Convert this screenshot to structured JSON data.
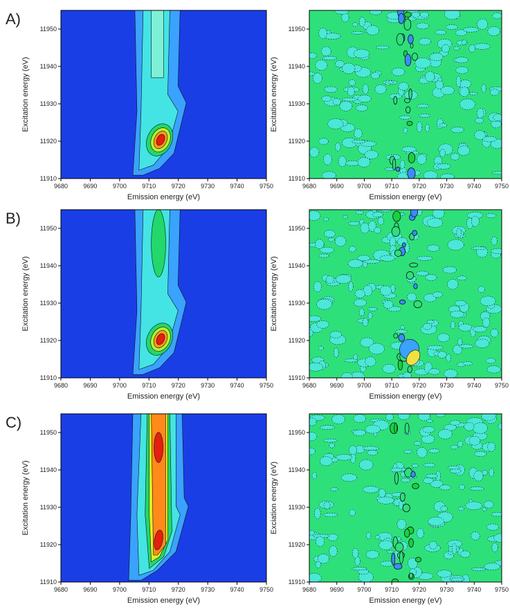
{
  "chart_data": [
    {
      "type": "contour",
      "label": "A)",
      "xlabel": "Emission energy (eV)",
      "ylabel": "Excitation energy (eV)",
      "xlim": [
        9680,
        9750
      ],
      "ylim": [
        11910,
        11955
      ],
      "xticks": [
        9680,
        9690,
        9700,
        9710,
        9720,
        9730,
        9740,
        9750
      ],
      "yticks": [
        11910,
        11920,
        11930,
        11940,
        11950
      ]
    },
    {
      "type": "contour",
      "xlabel": "Emission energy (eV)",
      "ylabel": "Excitation energy (eV)",
      "xlim": [
        9680,
        9750
      ],
      "ylim": [
        11910,
        11955
      ],
      "xticks": [
        9680,
        9690,
        9700,
        9710,
        9720,
        9730,
        9740,
        9750
      ],
      "yticks": [
        11910,
        11920,
        11930,
        11940,
        11950
      ]
    },
    {
      "type": "contour",
      "label": "B)",
      "xlabel": "Emission energy (eV)",
      "ylabel": "Excitation energy (eV)",
      "xlim": [
        9680,
        9750
      ],
      "ylim": [
        11910,
        11955
      ],
      "xticks": [
        9680,
        9690,
        9700,
        9710,
        9720,
        9730,
        9740,
        9750
      ],
      "yticks": [
        11910,
        11920,
        11930,
        11940,
        11950
      ]
    },
    {
      "type": "contour",
      "xlabel": "Emission energy (eV)",
      "ylabel": "Excitation energy (eV)",
      "xlim": [
        9680,
        9750
      ],
      "ylim": [
        11910,
        11955
      ],
      "xticks": [
        9680,
        9690,
        9700,
        9710,
        9720,
        9730,
        9740,
        9750
      ],
      "yticks": [
        11910,
        11920,
        11930,
        11940,
        11950
      ]
    },
    {
      "type": "contour",
      "label": "C)",
      "xlabel": "Emission energy (eV)",
      "ylabel": "Excitation energy (eV)",
      "xlim": [
        9680,
        9750
      ],
      "ylim": [
        11910,
        11955
      ],
      "xticks": [
        9680,
        9690,
        9700,
        9710,
        9720,
        9730,
        9740,
        9750
      ],
      "yticks": [
        11910,
        11920,
        11930,
        11940,
        11950
      ]
    },
    {
      "type": "contour",
      "xlabel": "Emission energy (eV)",
      "ylabel": "Exciation energy (eV)",
      "xlim": [
        9680,
        9750
      ],
      "ylim": [
        11910,
        11955
      ],
      "xticks": [
        9680,
        9690,
        9700,
        9710,
        9720,
        9730,
        9740,
        9750
      ],
      "yticks": [
        11910,
        11920,
        11930,
        11940,
        11950
      ]
    }
  ]
}
